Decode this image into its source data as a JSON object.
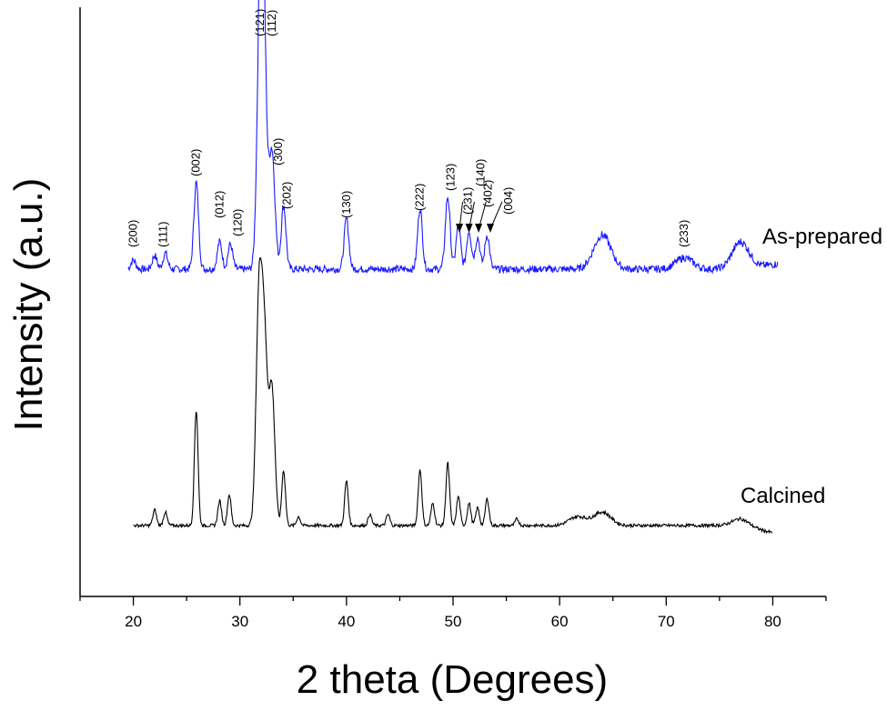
{
  "chart_data": {
    "type": "line",
    "xlabel": "2 theta (Degrees)",
    "ylabel": "Intensity (a.u.)",
    "xlim": [
      15,
      85
    ],
    "x_ticks": [
      "20",
      "30",
      "40",
      "50",
      "60",
      "70",
      "80"
    ],
    "y_ticks_shown": false,
    "series": [
      {
        "name": "As-prepared",
        "color": "#1a1aff",
        "peaks": [
          {
            "x": 20,
            "y": 0.04
          },
          {
            "x": 22,
            "y": 0.06
          },
          {
            "x": 23,
            "y": 0.07
          },
          {
            "x": 25.9,
            "y": 0.38
          },
          {
            "x": 28.1,
            "y": 0.12
          },
          {
            "x": 29.1,
            "y": 0.11
          },
          {
            "x": 31.9,
            "y": 1.0
          },
          {
            "x": 32.2,
            "y": 0.97
          },
          {
            "x": 33.0,
            "y": 0.52
          },
          {
            "x": 34.1,
            "y": 0.28
          },
          {
            "x": 40.0,
            "y": 0.22
          },
          {
            "x": 46.9,
            "y": 0.27
          },
          {
            "x": 49.5,
            "y": 0.32
          },
          {
            "x": 50.5,
            "y": 0.19
          },
          {
            "x": 51.5,
            "y": 0.17
          },
          {
            "x": 52.3,
            "y": 0.14
          },
          {
            "x": 53.2,
            "y": 0.15
          },
          {
            "x": 64.0,
            "y": 0.15
          },
          {
            "x": 71.7,
            "y": 0.05
          },
          {
            "x": 77.0,
            "y": 0.12
          }
        ]
      },
      {
        "name": "Calcined",
        "color": "#000000",
        "peaks": [
          {
            "x": 22.0,
            "y": 0.07
          },
          {
            "x": 23.0,
            "y": 0.06
          },
          {
            "x": 25.9,
            "y": 0.52
          },
          {
            "x": 28.1,
            "y": 0.11
          },
          {
            "x": 29.0,
            "y": 0.14
          },
          {
            "x": 31.8,
            "y": 1.0
          },
          {
            "x": 32.3,
            "y": 0.76
          },
          {
            "x": 33.0,
            "y": 0.61
          },
          {
            "x": 34.1,
            "y": 0.25
          },
          {
            "x": 35.5,
            "y": 0.04
          },
          {
            "x": 40.0,
            "y": 0.2
          },
          {
            "x": 42.2,
            "y": 0.05
          },
          {
            "x": 43.9,
            "y": 0.05
          },
          {
            "x": 46.9,
            "y": 0.25
          },
          {
            "x": 48.1,
            "y": 0.1
          },
          {
            "x": 49.5,
            "y": 0.28
          },
          {
            "x": 50.5,
            "y": 0.13
          },
          {
            "x": 51.5,
            "y": 0.1
          },
          {
            "x": 52.3,
            "y": 0.08
          },
          {
            "x": 53.2,
            "y": 0.12
          },
          {
            "x": 56.0,
            "y": 0.03
          },
          {
            "x": 61.7,
            "y": 0.04
          },
          {
            "x": 64.0,
            "y": 0.06
          },
          {
            "x": 77.0,
            "y": 0.03
          }
        ]
      }
    ],
    "annotations": [
      {
        "label": "(200)",
        "x": 20.0
      },
      {
        "label": "(111)",
        "x": 22.8
      },
      {
        "label": "(002)",
        "x": 25.9
      },
      {
        "label": "(012)",
        "x": 28.1
      },
      {
        "label": "(120)",
        "x": 29.8
      },
      {
        "label": "(121)",
        "x": 31.9
      },
      {
        "label": "(112)",
        "x": 33.0
      },
      {
        "label": "(300)",
        "x": 33.6
      },
      {
        "label": "(202)",
        "x": 34.4
      },
      {
        "label": "(130)",
        "x": 40.0
      },
      {
        "label": "(222)",
        "x": 46.9
      },
      {
        "label": "(123)",
        "x": 49.8
      },
      {
        "label": "(231)",
        "x": 51.4
      },
      {
        "label": "(140)",
        "x": 52.6
      },
      {
        "label": "(402)",
        "x": 53.3
      },
      {
        "label": "(004)",
        "x": 55.2
      },
      {
        "label": "(233)",
        "x": 71.7
      }
    ],
    "arrows": [
      {
        "label_x": 50.9,
        "tip_x": 50.6
      },
      {
        "label_x": 52.0,
        "tip_x": 51.5
      },
      {
        "label_x": 53.1,
        "tip_x": 52.4
      },
      {
        "label_x": 54.6,
        "tip_x": 53.5
      }
    ]
  }
}
